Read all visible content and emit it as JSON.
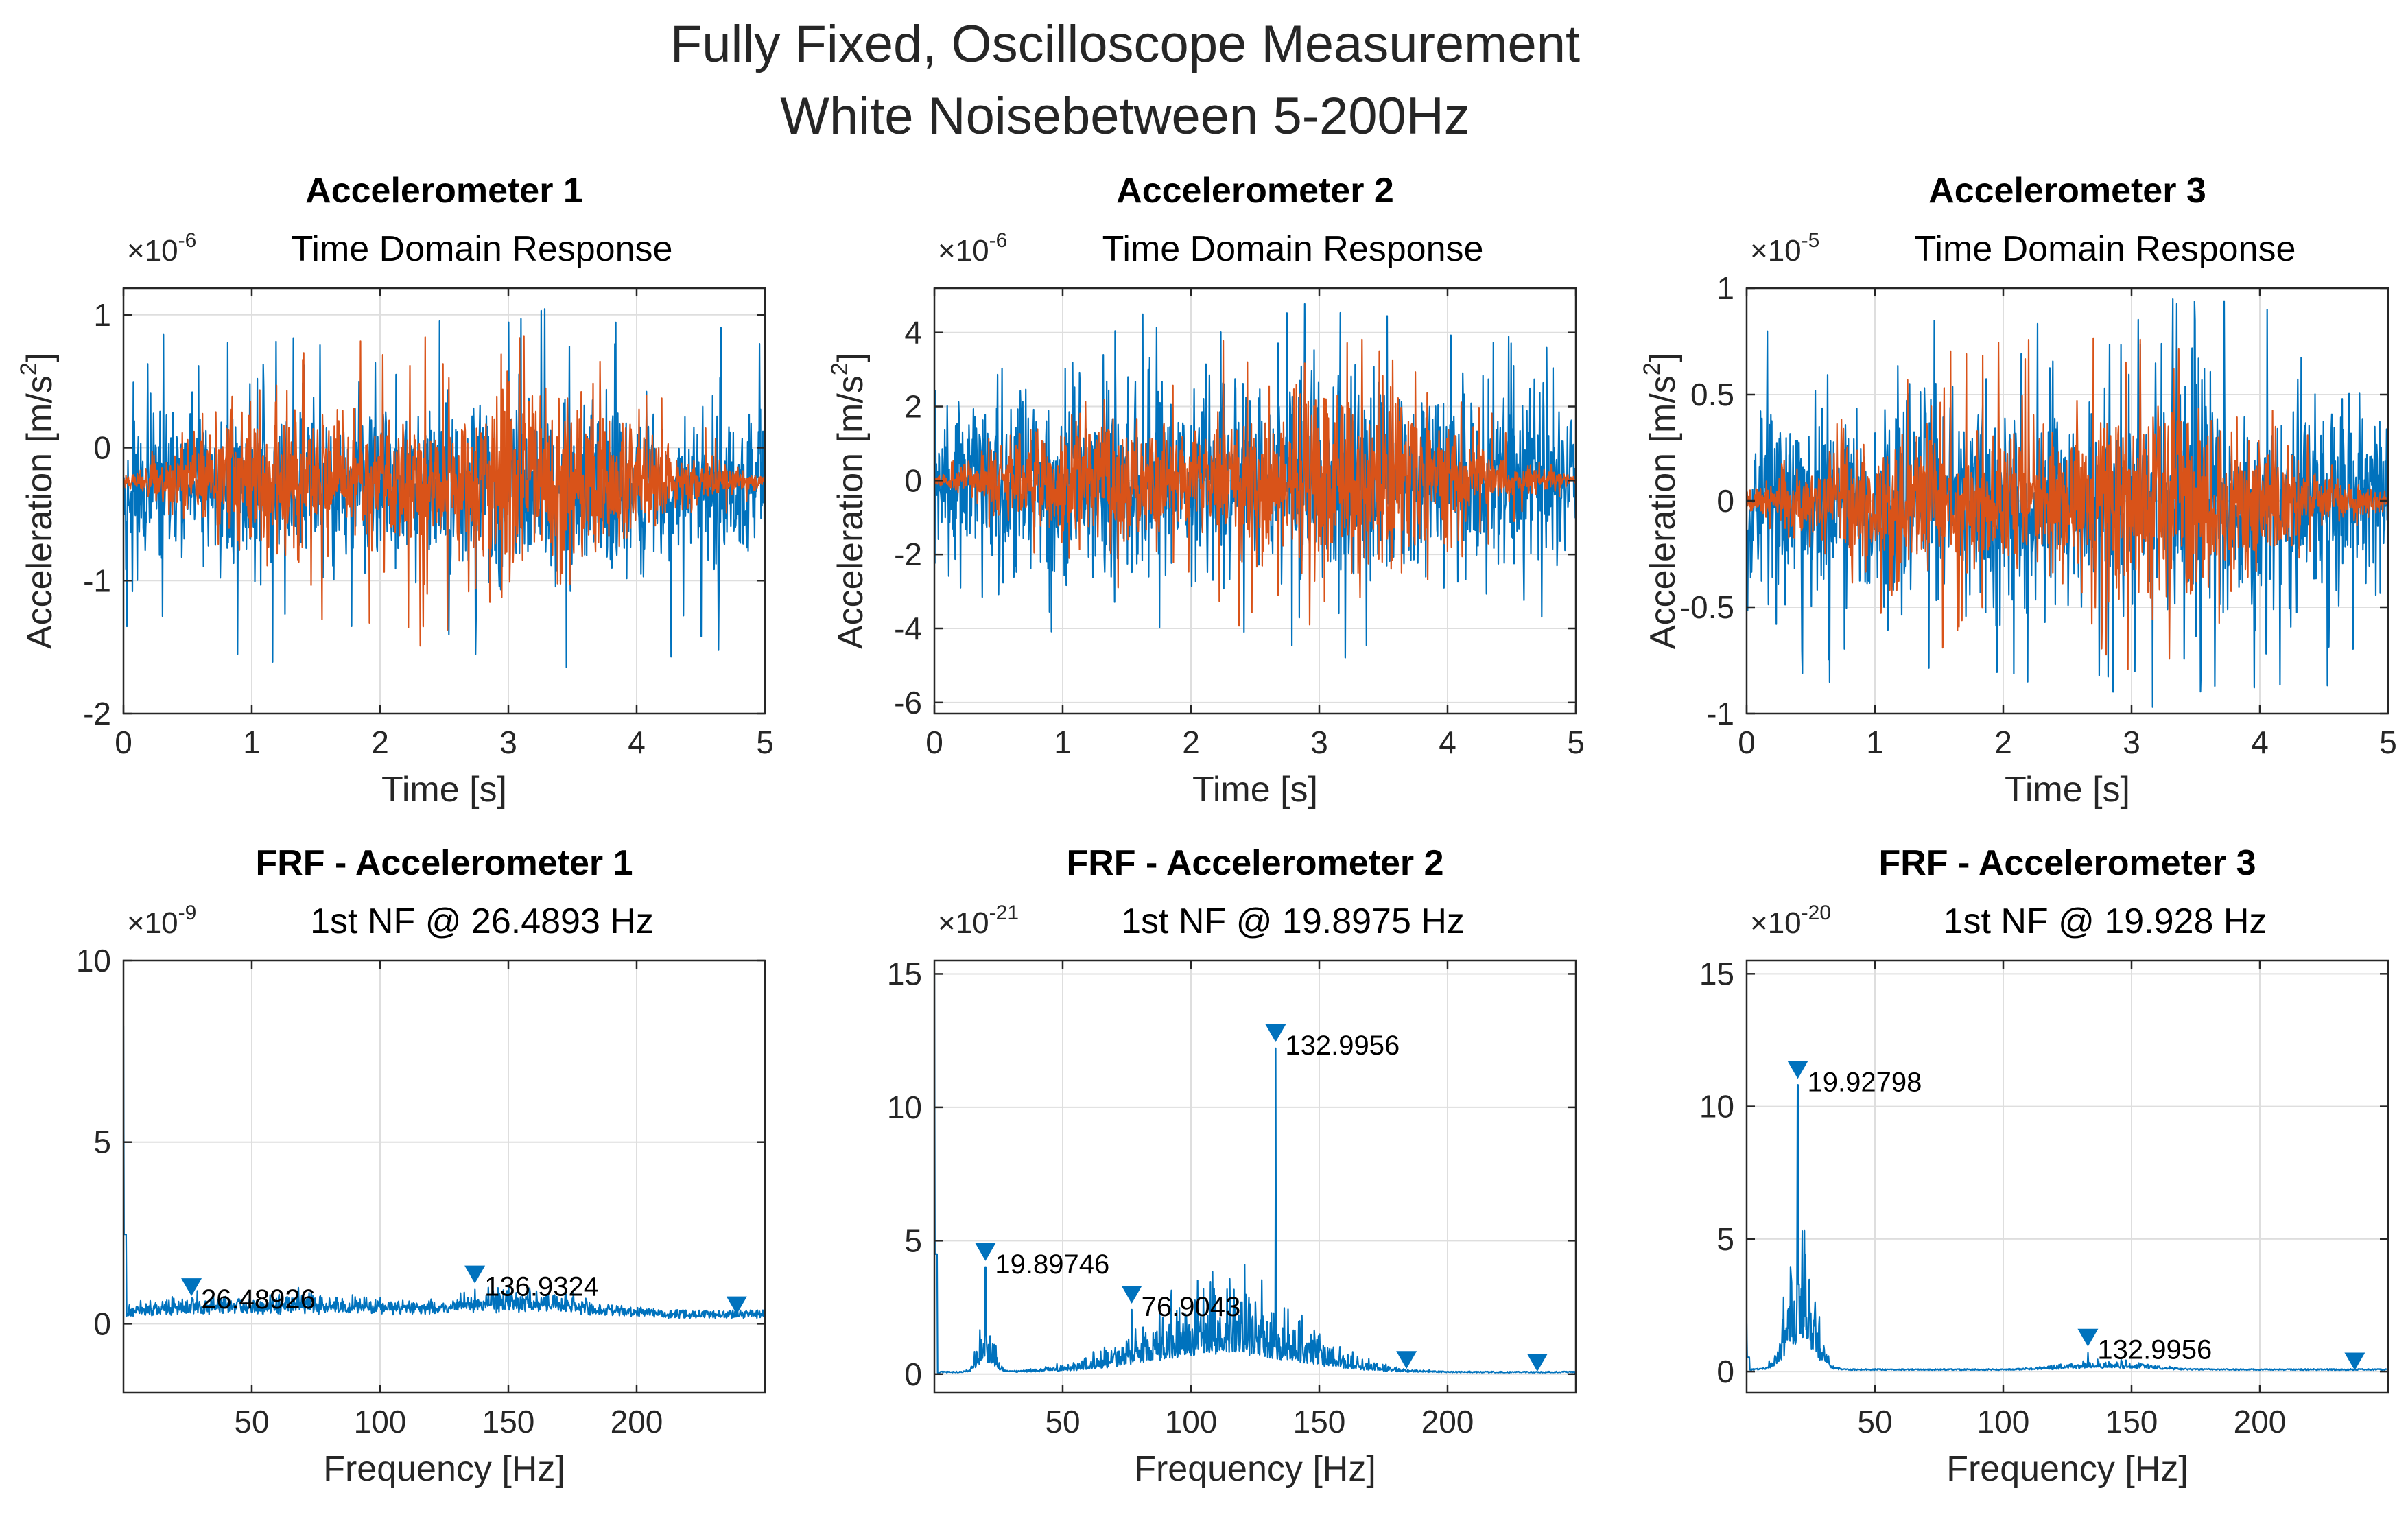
{
  "figure": {
    "title_line1": "Fully Fixed, Oscilloscope Measurement",
    "title_line2": "White Noisebetween 5-200Hz"
  },
  "colors": {
    "blue": "#0072BD",
    "orange": "#D95319",
    "axis": "#262626",
    "grid": "#dedede"
  },
  "chart_data": [
    {
      "id": "t1",
      "type": "line",
      "title": "Accelerometer 1",
      "subtitle": "Time Domain Response",
      "exponent_base": "×10",
      "exponent": "-6",
      "xlabel": "Time [s]",
      "ylabel": "Acceleration [m/s",
      "ylabel_sup": "2",
      "ylabel_end": "]",
      "xlim": [
        0,
        5
      ],
      "ylim": [
        -2,
        1.2
      ],
      "xticks": [
        0,
        1,
        2,
        3,
        4,
        5
      ],
      "yticks": [
        -2,
        -1,
        0,
        1
      ],
      "series": [
        {
          "name": "blue",
          "color": "#0072BD",
          "offset": -0.3,
          "base_amp": 0.28,
          "bulge_amp": 0.05,
          "spike_amp": 1.4,
          "seed": 11
        },
        {
          "name": "orange",
          "color": "#D95319",
          "offset": -0.25,
          "base_amp": 0.02,
          "bulge_amp": 0.42,
          "spike_amp": 1.25,
          "seed": 23
        }
      ]
    },
    {
      "id": "t2",
      "type": "line",
      "title": "Accelerometer 2",
      "subtitle": "Time Domain Response",
      "exponent_base": "×10",
      "exponent": "-6",
      "xlabel": "Time [s]",
      "ylabel": "Acceleration [m/s",
      "ylabel_sup": "2",
      "ylabel_end": "]",
      "xlim": [
        0,
        5
      ],
      "ylim": [
        -6.3,
        5.2
      ],
      "xticks": [
        0,
        1,
        2,
        3,
        4,
        5
      ],
      "yticks": [
        -6,
        -4,
        -2,
        0,
        2,
        4
      ],
      "series": [
        {
          "name": "blue",
          "color": "#0072BD",
          "offset": 0,
          "base_amp": 1.1,
          "bulge_amp": 0.5,
          "spike_amp": 5.0,
          "seed": 31
        },
        {
          "name": "orange",
          "color": "#D95319",
          "offset": 0,
          "base_amp": 0.05,
          "bulge_amp": 1.45,
          "spike_amp": 4.4,
          "seed": 47
        }
      ]
    },
    {
      "id": "t3",
      "type": "line",
      "title": "Accelerometer 3",
      "subtitle": "Time Domain Response",
      "exponent_base": "×10",
      "exponent": "-5",
      "xlabel": "Time [s]",
      "ylabel": "Acceleration [m/s",
      "ylabel_sup": "2",
      "ylabel_end": "]",
      "xlim": [
        0,
        5
      ],
      "ylim": [
        -1,
        1
      ],
      "xticks": [
        0,
        1,
        2,
        3,
        4,
        5
      ],
      "yticks": [
        -1,
        -0.5,
        0,
        0.5,
        1
      ],
      "series": [
        {
          "name": "blue",
          "color": "#0072BD",
          "offset": 0,
          "base_amp": 0.22,
          "bulge_amp": 0.05,
          "spike_amp": 1.0,
          "seed": 53
        },
        {
          "name": "orange",
          "color": "#D95319",
          "offset": 0,
          "base_amp": 0.02,
          "bulge_amp": 0.27,
          "spike_amp": 0.85,
          "seed": 67
        }
      ]
    },
    {
      "id": "f1",
      "type": "line",
      "title": "FRF - Accelerometer 1",
      "subtitle": "1st NF @ 26.4893 Hz",
      "exponent_base": "×10",
      "exponent": "-9",
      "xlabel": "Frequency [Hz]",
      "xlim": [
        0,
        250
      ],
      "ylim": [
        -1.9,
        10
      ],
      "xticks": [
        50,
        100,
        150,
        200
      ],
      "yticks": [
        0,
        5,
        10
      ],
      "floor": 0.15,
      "floor_noise": 0.45,
      "edge_spike": 8.2,
      "humps": [
        {
          "center": 60,
          "width": 45,
          "height": 0.35
        },
        {
          "center": 155,
          "width": 22,
          "height": 0.45
        }
      ],
      "markers": [
        {
          "x": 26.48926,
          "y": 0.95,
          "label": "26.48926"
        },
        {
          "x": 136.9324,
          "y": 1.3,
          "label": "136.9324"
        },
        {
          "x": 239,
          "y": 0.45,
          "label": ""
        }
      ],
      "color": "#0072BD",
      "seed": 71
    },
    {
      "id": "f2",
      "type": "line",
      "title": "FRF - Accelerometer 2",
      "subtitle": "1st NF @ 19.8975 Hz",
      "exponent_base": "×10",
      "exponent": "-21",
      "xlabel": "Frequency [Hz]",
      "xlim": [
        0,
        250
      ],
      "ylim": [
        -0.7,
        15.5
      ],
      "xticks": [
        50,
        100,
        150,
        200
      ],
      "yticks": [
        0,
        5,
        10,
        15
      ],
      "floor": 0.05,
      "floor_noise": 0.1,
      "edge_spike": 15,
      "humps": [
        {
          "center": 112,
          "width": 28,
          "height": 2.2
        },
        {
          "center": 20,
          "width": 3,
          "height": 1.2
        }
      ],
      "markers": [
        {
          "x": 19.89746,
          "y": 4.5,
          "label": "19.89746"
        },
        {
          "x": 76.9043,
          "y": 2.9,
          "label": "76.9043"
        },
        {
          "x": 132.9956,
          "y": 12.7,
          "label": "132.9956"
        },
        {
          "x": 184,
          "y": 0.45,
          "label": ""
        },
        {
          "x": 235,
          "y": 0.35,
          "label": ""
        }
      ],
      "color": "#0072BD",
      "seed": 83
    },
    {
      "id": "f3",
      "type": "line",
      "title": "FRF - Accelerometer 3",
      "subtitle": "1st NF @ 19.928 Hz",
      "exponent_base": "×10",
      "exponent": "-20",
      "xlabel": "Frequency [Hz]",
      "xlim": [
        0,
        250
      ],
      "ylim": [
        -0.8,
        15.5
      ],
      "xticks": [
        50,
        100,
        150,
        200
      ],
      "yticks": [
        0,
        5,
        10,
        15
      ],
      "floor": 0.05,
      "floor_noise": 0.1,
      "edge_spike": 1.8,
      "humps": [
        {
          "center": 21,
          "width": 5,
          "height": 3.5
        },
        {
          "center": 140,
          "width": 15,
          "height": 0.25
        }
      ],
      "markers": [
        {
          "x": 19.92798,
          "y": 11.3,
          "label": "19.92798"
        },
        {
          "x": 132.9956,
          "y": 1.2,
          "label": "132.9956"
        },
        {
          "x": 237,
          "y": 0.3,
          "label": ""
        }
      ],
      "color": "#0072BD",
      "seed": 97
    }
  ]
}
